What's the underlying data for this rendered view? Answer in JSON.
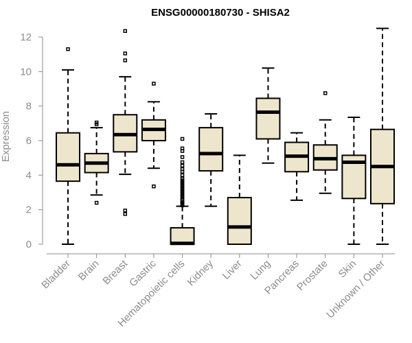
{
  "chart_data": {
    "type": "boxplot",
    "title": "ENSG00000180730 - SHISA2",
    "xlabel": "",
    "ylabel": "Expression",
    "ylim": [
      0,
      12.5
    ],
    "yticks": [
      0,
      2,
      4,
      6,
      8,
      10,
      12
    ],
    "box_color": "#ede6cc",
    "categories": [
      "Bladder",
      "Brain",
      "Breast",
      "Gastric",
      "Hematopoietic cells",
      "Kidney",
      "Liver",
      "Lung",
      "Pancreas",
      "Prostate",
      "Skin",
      "Unknown / Other"
    ],
    "boxes": [
      {
        "min": 0.0,
        "q1": 3.65,
        "median": 4.6,
        "q3": 6.45,
        "max": 10.1,
        "outliers": [
          11.3
        ]
      },
      {
        "min": 2.85,
        "q1": 4.15,
        "median": 4.7,
        "q3": 5.25,
        "max": 6.75,
        "outliers": [
          7.05,
          6.95,
          2.4
        ]
      },
      {
        "min": 4.05,
        "q1": 5.35,
        "median": 6.35,
        "q3": 7.5,
        "max": 9.7,
        "outliers": [
          12.35,
          11.05,
          10.65,
          1.95,
          1.75
        ]
      },
      {
        "min": 4.4,
        "q1": 6.0,
        "median": 6.65,
        "q3": 7.2,
        "max": 8.25,
        "outliers": [
          9.3,
          3.35
        ]
      },
      {
        "min": 0.0,
        "q1": 0.0,
        "median": 0.05,
        "q3": 0.95,
        "max": 2.2,
        "outliers": [
          2.25,
          2.3,
          2.35,
          2.4,
          2.45,
          2.55,
          2.6,
          2.7,
          2.8,
          2.9,
          3.0,
          3.1,
          3.2,
          3.3,
          3.4,
          3.5,
          3.6,
          3.7,
          3.8,
          4.0,
          4.2,
          4.35,
          4.55,
          4.75,
          5.05,
          5.4,
          5.55,
          6.1
        ]
      },
      {
        "min": 2.2,
        "q1": 4.25,
        "median": 5.25,
        "q3": 6.75,
        "max": 7.55,
        "outliers": []
      },
      {
        "min": 0.0,
        "q1": 0.0,
        "median": 1.0,
        "q3": 2.7,
        "max": 5.15,
        "outliers": []
      },
      {
        "min": 4.7,
        "q1": 6.1,
        "median": 7.65,
        "q3": 8.45,
        "max": 10.2,
        "outliers": []
      },
      {
        "min": 2.55,
        "q1": 4.2,
        "median": 5.1,
        "q3": 5.9,
        "max": 6.45,
        "outliers": []
      },
      {
        "min": 2.95,
        "q1": 4.3,
        "median": 4.95,
        "q3": 5.75,
        "max": 7.2,
        "outliers": [
          8.75
        ]
      },
      {
        "min": 0.0,
        "q1": 2.65,
        "median": 4.75,
        "q3": 5.15,
        "max": 7.35,
        "outliers": []
      },
      {
        "min": 0.0,
        "q1": 2.35,
        "median": 4.5,
        "q3": 6.65,
        "max": 12.5,
        "outliers": []
      }
    ]
  }
}
